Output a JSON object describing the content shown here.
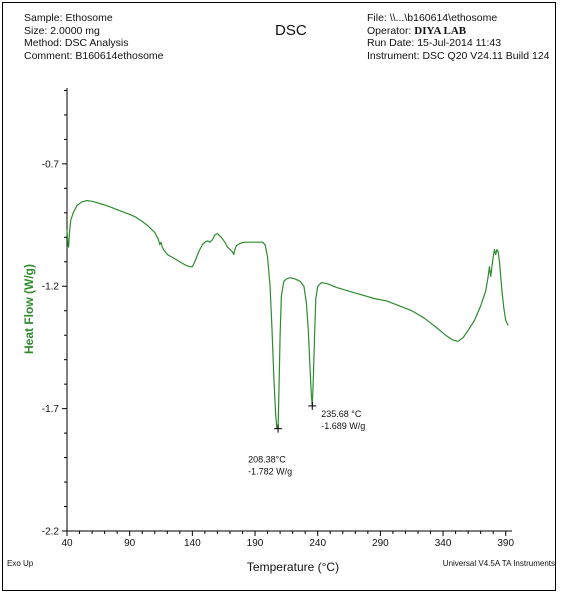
{
  "header": {
    "sample_label": "Sample:",
    "sample": "Ethosome",
    "size_label": "Size:",
    "size": "2.0000 mg",
    "method_label": "Method:",
    "method": "DSC Analysis",
    "comment_label": "Comment:",
    "comment": "B160614ethosome",
    "title": "DSC",
    "file_label": "File:",
    "file": "\\\\...\\b160614\\ethosome",
    "operator_label": "Operator:",
    "operator": "DIYA LAB",
    "run_date_label": "Run Date:",
    "run_date": "15-Jul-2014 11:43",
    "instrument_label": "Instrument:",
    "instrument": "DSC Q20 V24.11 Build 124"
  },
  "footer": {
    "exo": "Exo Up",
    "software": "Universal V4.5A TA Instruments"
  },
  "chart_data": {
    "type": "line",
    "xlabel": "Temperature (°C)",
    "ylabel": "Heat Flow (W/g)",
    "xlim": [
      40,
      395
    ],
    "ylim": [
      -2.2,
      -0.39
    ],
    "x_ticks": [
      40,
      90,
      140,
      190,
      240,
      290,
      340,
      390
    ],
    "y_ticks": [
      -0.7,
      -1.2,
      -1.7,
      -2.2
    ],
    "line_color": "#2e8b2e",
    "series": [
      {
        "values": [
          [
            40.0,
            -0.97
          ],
          [
            40.8,
            -1.03
          ],
          [
            41.3,
            -1.04
          ],
          [
            42.0,
            -0.98
          ],
          [
            43.0,
            -0.93
          ],
          [
            45.0,
            -0.9
          ],
          [
            48.0,
            -0.87
          ],
          [
            52.0,
            -0.855
          ],
          [
            56.0,
            -0.85
          ],
          [
            60.0,
            -0.853
          ],
          [
            65.0,
            -0.86
          ],
          [
            70.0,
            -0.868
          ],
          [
            75.0,
            -0.877
          ],
          [
            80.0,
            -0.887
          ],
          [
            85.0,
            -0.897
          ],
          [
            90.0,
            -0.906
          ],
          [
            95.0,
            -0.918
          ],
          [
            100.0,
            -0.935
          ],
          [
            105.0,
            -0.955
          ],
          [
            110.0,
            -0.98
          ],
          [
            113.0,
            -1.01
          ],
          [
            114.0,
            -1.03
          ],
          [
            115.0,
            -1.02
          ],
          [
            116.0,
            -1.04
          ],
          [
            117.0,
            -1.05
          ],
          [
            120.0,
            -1.07
          ],
          [
            125.0,
            -1.085
          ],
          [
            130.0,
            -1.1
          ],
          [
            135.0,
            -1.115
          ],
          [
            138.0,
            -1.12
          ],
          [
            140.0,
            -1.12
          ],
          [
            142.0,
            -1.1
          ],
          [
            145.0,
            -1.06
          ],
          [
            148.0,
            -1.03
          ],
          [
            150.0,
            -1.02
          ],
          [
            152.0,
            -1.015
          ],
          [
            154.0,
            -1.02
          ],
          [
            156.0,
            -1.01
          ],
          [
            158.0,
            -0.99
          ],
          [
            160.0,
            -0.985
          ],
          [
            161.0,
            -0.99
          ],
          [
            163.0,
            -1.0
          ],
          [
            166.0,
            -1.02
          ],
          [
            168.0,
            -1.04
          ],
          [
            170.0,
            -1.05
          ],
          [
            172.0,
            -1.06
          ],
          [
            173.0,
            -1.07
          ],
          [
            174.0,
            -1.05
          ],
          [
            175.0,
            -1.035
          ],
          [
            178.0,
            -1.025
          ],
          [
            182.0,
            -1.02
          ],
          [
            186.0,
            -1.02
          ],
          [
            190.0,
            -1.02
          ],
          [
            193.0,
            -1.02
          ],
          [
            196.0,
            -1.02
          ],
          [
            198.0,
            -1.03
          ],
          [
            200.0,
            -1.08
          ],
          [
            202.0,
            -1.2
          ],
          [
            203.5,
            -1.37
          ],
          [
            205.0,
            -1.57
          ],
          [
            206.5,
            -1.73
          ],
          [
            207.5,
            -1.78
          ],
          [
            208.4,
            -1.782
          ],
          [
            209.2,
            -1.6
          ],
          [
            210.0,
            -1.4
          ],
          [
            211.0,
            -1.24
          ],
          [
            213.0,
            -1.18
          ],
          [
            215.0,
            -1.17
          ],
          [
            218.0,
            -1.165
          ],
          [
            222.0,
            -1.17
          ],
          [
            226.0,
            -1.18
          ],
          [
            229.0,
            -1.2
          ],
          [
            231.0,
            -1.27
          ],
          [
            232.5,
            -1.38
          ],
          [
            234.0,
            -1.55
          ],
          [
            235.0,
            -1.65
          ],
          [
            235.68,
            -1.689
          ],
          [
            236.5,
            -1.58
          ],
          [
            237.5,
            -1.4
          ],
          [
            238.5,
            -1.25
          ],
          [
            240.0,
            -1.2
          ],
          [
            243.0,
            -1.185
          ],
          [
            248.0,
            -1.19
          ],
          [
            255.0,
            -1.205
          ],
          [
            265.0,
            -1.22
          ],
          [
            275.0,
            -1.235
          ],
          [
            285.0,
            -1.25
          ],
          [
            295.0,
            -1.26
          ],
          [
            305.0,
            -1.28
          ],
          [
            315.0,
            -1.3
          ],
          [
            325.0,
            -1.33
          ],
          [
            335.0,
            -1.37
          ],
          [
            342.0,
            -1.4
          ],
          [
            348.0,
            -1.42
          ],
          [
            352.0,
            -1.425
          ],
          [
            356.0,
            -1.41
          ],
          [
            360.0,
            -1.38
          ],
          [
            365.0,
            -1.34
          ],
          [
            370.0,
            -1.28
          ],
          [
            374.0,
            -1.22
          ],
          [
            376.0,
            -1.16
          ],
          [
            377.0,
            -1.12
          ],
          [
            378.0,
            -1.16
          ],
          [
            379.0,
            -1.12
          ],
          [
            380.0,
            -1.08
          ],
          [
            381.0,
            -1.05
          ],
          [
            382.0,
            -1.07
          ],
          [
            383.0,
            -1.05
          ],
          [
            384.0,
            -1.06
          ],
          [
            385.0,
            -1.1
          ],
          [
            386.0,
            -1.16
          ],
          [
            387.0,
            -1.22
          ],
          [
            388.5,
            -1.29
          ],
          [
            390.0,
            -1.34
          ],
          [
            392.0,
            -1.36
          ]
        ]
      }
    ],
    "annotations": [
      {
        "x": 208.38,
        "y": -1.782,
        "temp": "208.38°C",
        "value": "-1.782 W/g",
        "anchor": "below"
      },
      {
        "x": 235.68,
        "y": -1.689,
        "temp": "235.68 °C",
        "value": "-1.689 W/g",
        "anchor": "right"
      }
    ]
  }
}
